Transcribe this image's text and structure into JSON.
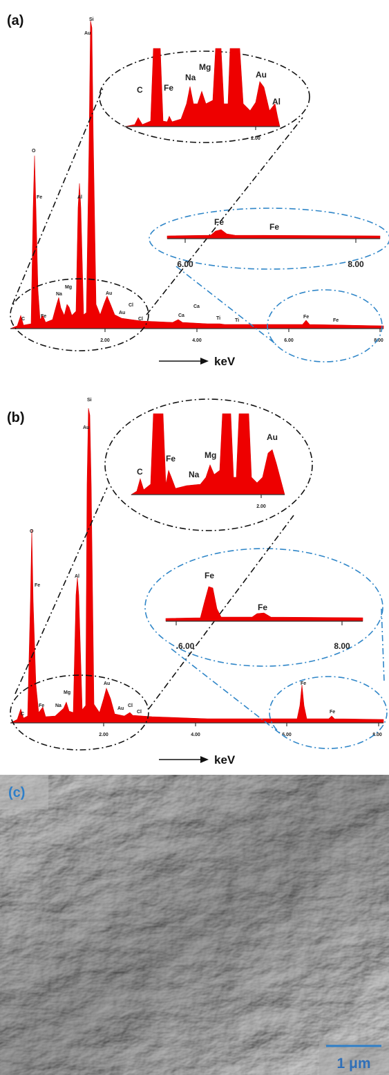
{
  "panels": [
    {
      "label": "(a)",
      "peak_labels": [
        "Si",
        "Au",
        "O",
        "Fe",
        "Al",
        "Na",
        "Mg",
        "Au",
        "C",
        "Fe",
        "Au",
        "Cl",
        "Cl",
        "Ca",
        "Ca",
        "Ti",
        "Ti",
        "Fe",
        "Fe"
      ],
      "axis_ticks": [
        "2.00",
        "4.00",
        "6.00",
        "8.00"
      ],
      "axis_unit": "keV",
      "inset_low": {
        "labels": [
          "C",
          "Fe",
          "Na",
          "Mg",
          "Au",
          "Al"
        ],
        "tick": "2.00"
      },
      "inset_high": {
        "labels": [
          "Fe",
          "Fe"
        ],
        "ticks": [
          "6.00",
          "8.00"
        ]
      }
    },
    {
      "label": "(b)",
      "peak_labels": [
        "Si",
        "Au",
        "O",
        "Fe",
        "Al",
        "Na",
        "Mg",
        "Au",
        "C",
        "Fe",
        "Au",
        "Cl",
        "Cl",
        "Fe",
        "Fe"
      ],
      "axis_ticks": [
        "2.00",
        "4.00",
        "6.00",
        "8.00"
      ],
      "axis_unit": "keV",
      "inset_low": {
        "labels": [
          "C",
          "Fe",
          "Na",
          "Mg",
          "Au"
        ],
        "tick": "2.00"
      },
      "inset_high": {
        "labels": [
          "Fe",
          "Fe"
        ],
        "ticks": [
          ".6.00",
          "8.00"
        ]
      }
    }
  ],
  "sem": {
    "label": "(c)",
    "scale_bar": "1 μm"
  }
}
